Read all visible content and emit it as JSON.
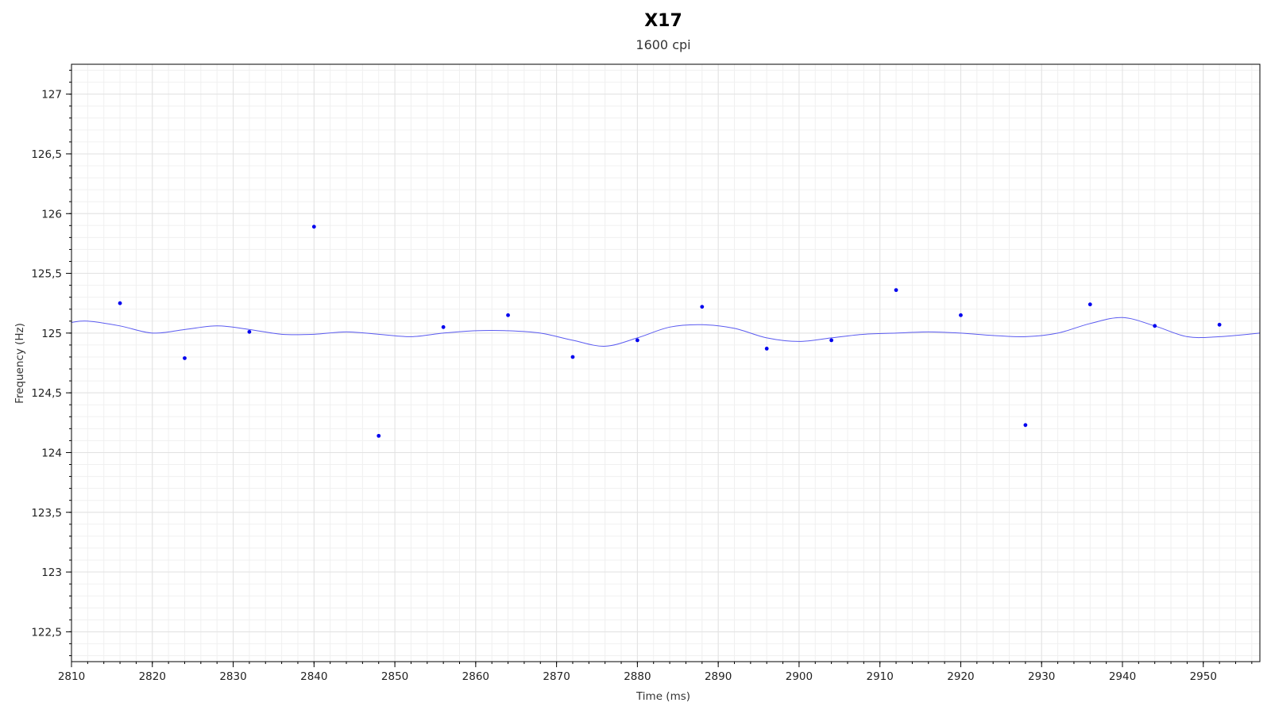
{
  "chart_data": {
    "type": "scatter",
    "title": "X17",
    "subtitle": "1600 cpi",
    "xlabel": "Time (ms)",
    "ylabel": "Frequency (Hz)",
    "xlim": [
      2810,
      2957
    ],
    "ylim": [
      122.25,
      127.25
    ],
    "x_ticks": [
      2810,
      2820,
      2830,
      2840,
      2850,
      2860,
      2870,
      2880,
      2890,
      2900,
      2910,
      2920,
      2930,
      2940,
      2950
    ],
    "x_tick_labels": [
      "2810",
      "2820",
      "2830",
      "2840",
      "2850",
      "2860",
      "2870",
      "2880",
      "2890",
      "2900",
      "2910",
      "2920",
      "2930",
      "2940",
      "2950"
    ],
    "y_ticks": [
      122.5,
      123,
      123.5,
      124,
      124.5,
      125,
      125.5,
      126,
      126.5,
      127
    ],
    "y_tick_labels": [
      "122,5",
      "123",
      "123,5",
      "124",
      "124,5",
      "125",
      "125,5",
      "126",
      "126,5",
      "127"
    ],
    "grid": true,
    "colors": {
      "points": "#0000ee",
      "curve": "#5a5af0"
    },
    "series": [
      {
        "kind": "points",
        "x": [
          2816,
          2824,
          2832,
          2840,
          2848,
          2856,
          2864,
          2872,
          2880,
          2888,
          2896,
          2904,
          2912,
          2920,
          2928,
          2936,
          2944,
          2952
        ],
        "y": [
          125.25,
          124.79,
          125.01,
          125.89,
          124.14,
          125.05,
          125.15,
          124.8,
          124.94,
          125.22,
          124.87,
          124.94,
          125.36,
          125.15,
          124.23,
          125.24,
          125.06,
          125.07
        ]
      },
      {
        "kind": "smoothed-line",
        "x": [
          2810,
          2812,
          2816,
          2820,
          2824,
          2828,
          2832,
          2836,
          2840,
          2844,
          2848,
          2852,
          2856,
          2860,
          2864,
          2868,
          2872,
          2876,
          2880,
          2884,
          2888,
          2892,
          2896,
          2900,
          2904,
          2908,
          2912,
          2916,
          2920,
          2924,
          2928,
          2932,
          2936,
          2940,
          2944,
          2948,
          2952,
          2957
        ],
        "y": [
          125.09,
          125.1,
          125.06,
          125.0,
          125.03,
          125.06,
          125.03,
          124.99,
          124.99,
          125.01,
          124.99,
          124.97,
          125.0,
          125.02,
          125.02,
          125.0,
          124.94,
          124.89,
          124.96,
          125.05,
          125.07,
          125.04,
          124.96,
          124.93,
          124.96,
          124.99,
          125.0,
          125.01,
          125.0,
          124.98,
          124.97,
          125.0,
          125.08,
          125.13,
          125.06,
          124.97,
          124.97,
          125.0
        ]
      }
    ]
  }
}
